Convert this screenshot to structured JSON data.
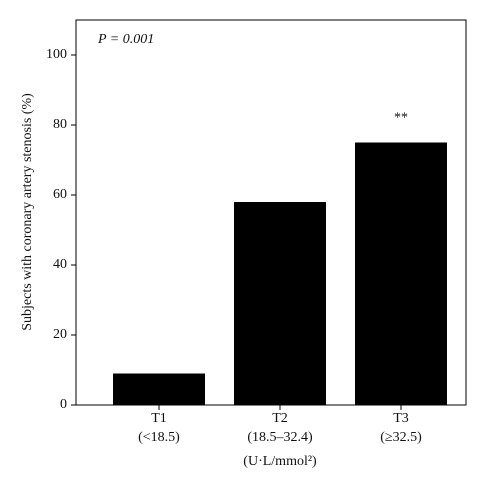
{
  "chart_data": {
    "type": "bar",
    "y_label": "Subjects with coronary artery stenosis (%)",
    "x_label": "(U·L/mmol²)",
    "categories": [
      "T1",
      "T2",
      "T3"
    ],
    "category_sublabels": [
      "(<18.5)",
      "(18.5–32.4)",
      "(≥32.5)"
    ],
    "values": [
      9,
      58,
      75
    ],
    "color": "#000000",
    "ylim": [
      0,
      110
    ],
    "yticks": [
      0,
      20,
      40,
      60,
      80,
      100
    ],
    "grid": false,
    "annotations": [
      {
        "text": "P = 0.001"
      },
      {
        "text": "**",
        "category": "T3"
      }
    ]
  }
}
